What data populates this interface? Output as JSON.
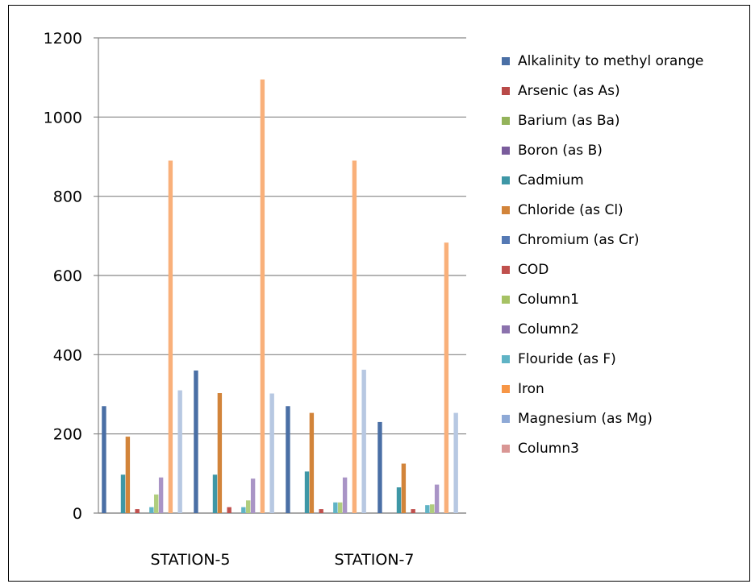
{
  "chart_data": {
    "type": "bar",
    "title": "",
    "xlabel": "",
    "ylabel": "",
    "ylim": [
      0,
      1200
    ],
    "yticks": [
      0,
      200,
      400,
      600,
      800,
      1000,
      1200
    ],
    "grid": true,
    "legend_position": "right",
    "categories": [
      "STATION-5",
      "",
      "STATION-7",
      ""
    ],
    "series": [
      {
        "name": "Alkalinity to methyl orange",
        "color": "#4a6fa5",
        "values": [
          270,
          360,
          270,
          230
        ]
      },
      {
        "name": "Arsenic (as As)",
        "color": "#b94a48",
        "values": [
          0,
          0,
          0,
          0
        ]
      },
      {
        "name": "Barium (as Ba)",
        "color": "#93b35a",
        "values": [
          0,
          0,
          0,
          0
        ]
      },
      {
        "name": "Boron (as B)",
        "color": "#7a5c9c",
        "values": [
          0,
          0,
          0,
          0
        ]
      },
      {
        "name": "Cadmium",
        "color": "#3e97a6",
        "values": [
          97,
          97,
          105,
          65
        ]
      },
      {
        "name": "Chloride  (as Cl)",
        "color": "#d2843a",
        "values": [
          193,
          303,
          253,
          125
        ]
      },
      {
        "name": "Chromium (as Cr)",
        "color": "#5579b4",
        "values": [
          0,
          0,
          0,
          0
        ]
      },
      {
        "name": "COD",
        "color": "#c0504d",
        "values": [
          10,
          15,
          10,
          10
        ]
      },
      {
        "name": "Column1",
        "color": "#a6c264",
        "values": [
          0,
          0,
          0,
          0
        ]
      },
      {
        "name": "Column2",
        "color": "#8b72ad",
        "values": [
          0,
          0,
          0,
          0
        ]
      },
      {
        "name": "Flouride (as F)",
        "color": "#5fb3c5",
        "values": [
          15,
          15,
          27,
          20
        ]
      },
      {
        "name": "",
        "color": "#b0cd7e",
        "values": [
          47,
          32,
          27,
          22
        ]
      },
      {
        "name": "",
        "color": "#a994c6",
        "values": [
          90,
          87,
          90,
          72
        ]
      },
      {
        "name": "Iron",
        "color": "#f79646",
        "values": [
          0,
          0,
          0,
          0
        ]
      },
      {
        "name": "",
        "color": "#f9b07a",
        "values": [
          890,
          1095,
          890,
          683
        ]
      },
      {
        "name": "Magnesium (as Mg)",
        "color": "#8ea9d6",
        "values": [
          0,
          0,
          0,
          0
        ]
      },
      {
        "name": "",
        "color": "#b7c8e2",
        "values": [
          310,
          302,
          362,
          253
        ]
      },
      {
        "name": "Column3",
        "color": "#d99694",
        "values": [
          0,
          0,
          0,
          0
        ]
      }
    ]
  }
}
